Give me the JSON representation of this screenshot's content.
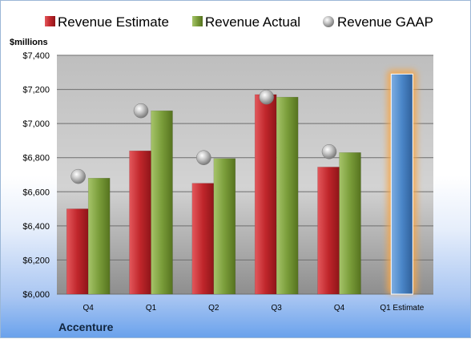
{
  "chart_data": {
    "type": "bar",
    "unit_label": "$millions",
    "company": "Accenture",
    "categories": [
      "Q4",
      "Q1",
      "Q2",
      "Q3",
      "Q4",
      "Q1 Estimate"
    ],
    "ylim": [
      6000,
      7400
    ],
    "yticks": [
      6000,
      6200,
      6400,
      6600,
      6800,
      7000,
      7200,
      7400
    ],
    "ytick_labels": [
      "$6,000",
      "$6,200",
      "$6,400",
      "$6,600",
      "$6,800",
      "$7,000",
      "$7,200",
      "$7,400"
    ],
    "grid": true,
    "legend_position": "top",
    "series": [
      {
        "name": "Revenue Estimate",
        "kind": "bar",
        "color": "#c0262b",
        "values": [
          6500,
          6840,
          6650,
          7170,
          6745,
          null
        ]
      },
      {
        "name": "Revenue Actual",
        "kind": "bar",
        "color": "#7a9d3a",
        "values": [
          6680,
          7075,
          6795,
          7155,
          6830,
          null
        ]
      },
      {
        "name": "Revenue GAAP",
        "kind": "marker",
        "color": "#b8b8b8",
        "values": [
          6690,
          7075,
          6800,
          7155,
          6835,
          null
        ]
      },
      {
        "name": "Q1 Estimate",
        "kind": "bar",
        "color": "#4a86c8",
        "glow": "#f5a64a",
        "values": [
          null,
          null,
          null,
          null,
          null,
          7290
        ]
      }
    ]
  }
}
